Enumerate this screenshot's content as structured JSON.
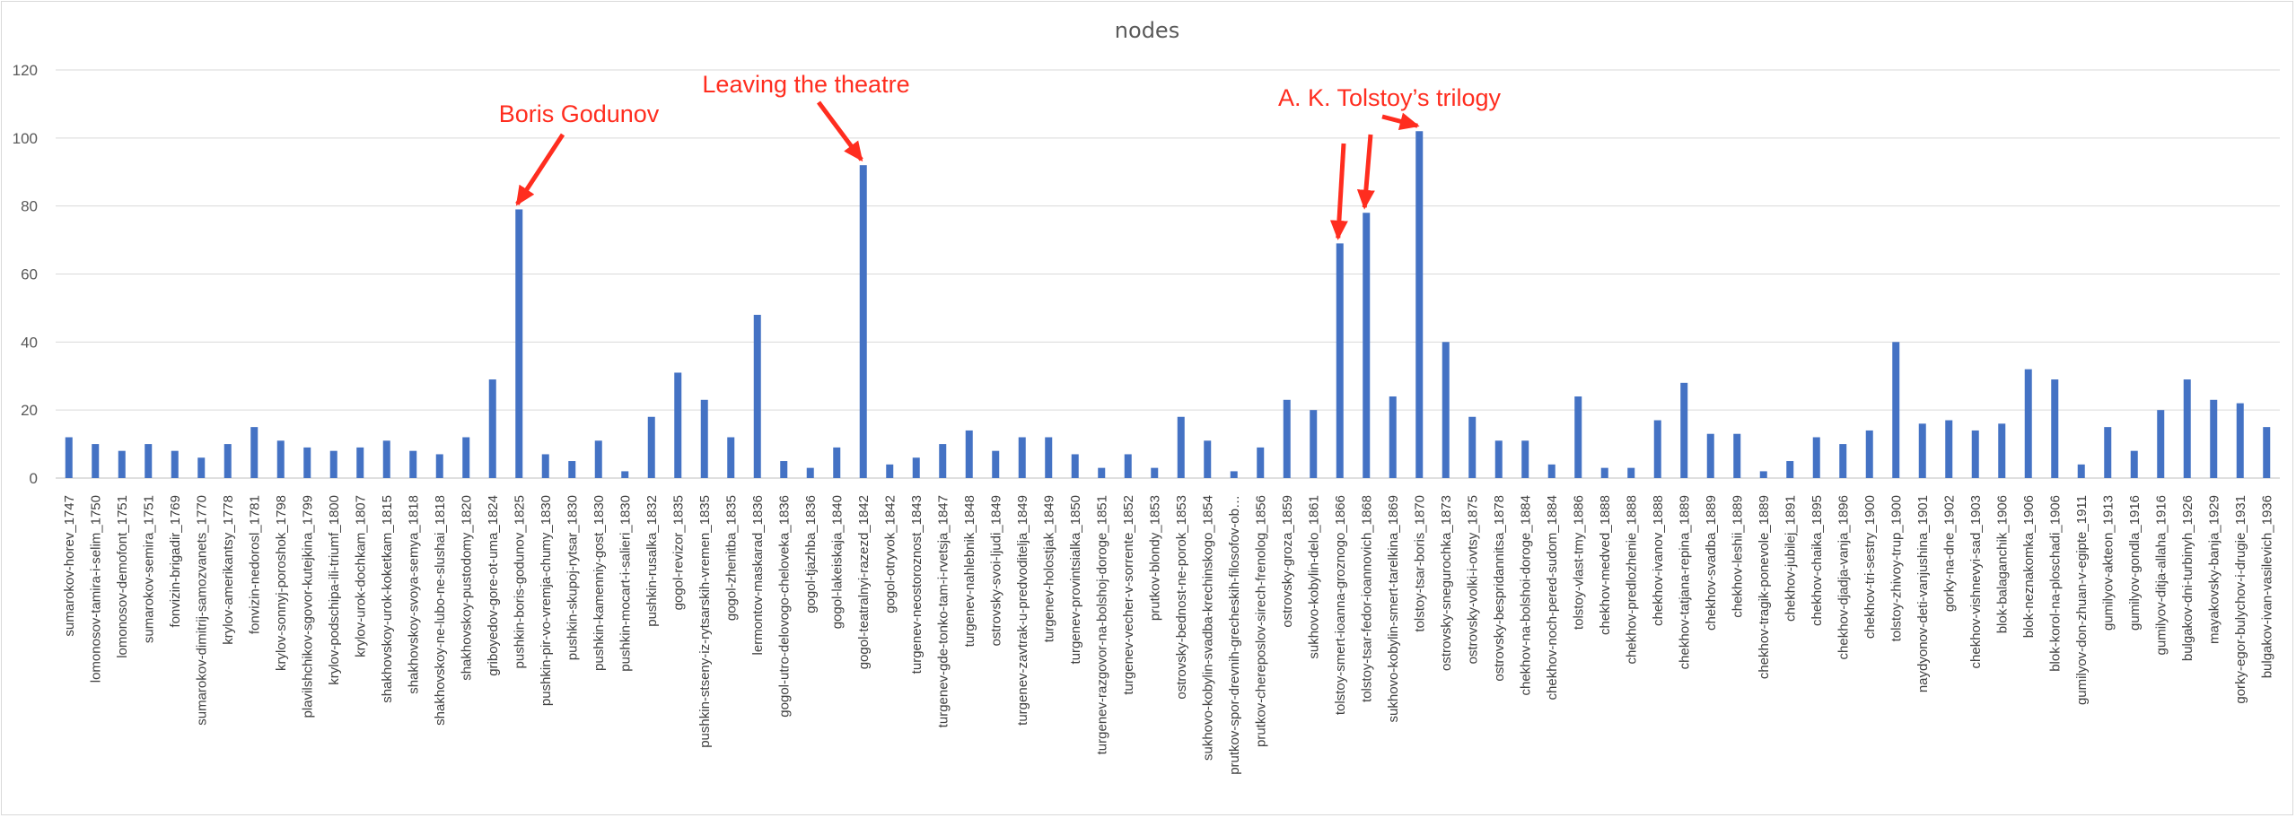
{
  "chart_data": {
    "type": "bar",
    "title": "nodes",
    "xlabel": "",
    "ylabel": "",
    "ylim": [
      0,
      120
    ],
    "yticks": [
      0,
      20,
      40,
      60,
      80,
      100,
      120
    ],
    "grid": true,
    "legend": "none",
    "colors": {
      "bar": "#4472c4",
      "annotation": "#ff2d1f",
      "grid": "#d9d9d9",
      "text": "#595959"
    },
    "categories": [
      "sumarokov-horev_1747",
      "lomonosov-tamira-i-selim_1750",
      "lomonosov-demofont_1751",
      "sumarokov-semira_1751",
      "fonvizin-brigadir_1769",
      "sumarokov-dimitrij-samozvanets_1770",
      "krylov-amerikantsy_1778",
      "fonvizin-nedorosl_1781",
      "krylov-sonnyj-poroshok_1798",
      "plavilshchikov-sgovor-kutejkina_1799",
      "krylov-podschipa-ili-triumf_1800",
      "krylov-urok-dochkam_1807",
      "shakhovskoy-urok-koketkam_1815",
      "shakhovskoy-svoya-semya_1818",
      "shakhovskoy-ne-lubo-ne-slushai_1818",
      "shakhovskoy-pustodomy_1820",
      "griboyedov-gore-ot-uma_1824",
      "pushkin-boris-godunov_1825",
      "pushkin-pir-vo-vremja-chumy_1830",
      "pushkin-skupoj-rytsar_1830",
      "pushkin-kamenniy-gost_1830",
      "pushkin-mocart-i-salieri_1830",
      "pushkin-rusalka_1832",
      "gogol-revizor_1835",
      "pushkin-stseny-iz-rytsarskih-vremen_1835",
      "gogol-zhenitba_1835",
      "lermontov-maskarad_1836",
      "gogol-utro-delovogo-cheloveka_1836",
      "gogol-tjazhba_1836",
      "gogol-lakeiskaja_1840",
      "gogol-teatralnyi-razezd_1842",
      "gogol-otryvok_1842",
      "turgenev-neostoroznost_1843",
      "turgenev-gde-tonko-tam-i-rvetsja_1847",
      "turgenev-nahlebnik_1848",
      "ostrovsky-svoi-ljudi_1849",
      "turgenev-zavtrak-u-predvoditelja_1849",
      "turgenev-holostjak_1849",
      "turgenev-provintsialka_1850",
      "turgenev-razgovor-na-bolshoj-doroge_1851",
      "turgenev-vecher-v-sorrente_1852",
      "prutkov-blondy_1853",
      "ostrovsky-bednost-ne-porok_1853",
      "sukhovo-kobylin-svadba-krechinskogo_1854",
      "prutkov-spor-drevnih-grecheskih-filosofov-ob…",
      "prutkov-chereposlov-sirech-frenolog_1856",
      "ostrovsky-groza_1859",
      "sukhovo-kobylin-delo_1861",
      "tolstoy-smert-ioanna-groznogo_1866",
      "tolstoy-tsar-fedor-ioannovich_1868",
      "sukhovo-kobylin-smert-tarelkina_1869",
      "tolstoy-tsar-boris_1870",
      "ostrovsky-snegurochka_1873",
      "ostrovsky-volki-i-ovtsy_1875",
      "ostrovsky-bespridannitsa_1878",
      "chekhov-na-bolshoi-doroge_1884",
      "chekhov-noch-pered-sudom_1884",
      "tolstoy-vlast-tmy_1886",
      "chekhov-medved_1888",
      "chekhov-predlozhenie_1888",
      "chekhov-ivanov_1888",
      "chekhov-tatjana-repina_1889",
      "chekhov-svadba_1889",
      "chekhov-leshii_1889",
      "chekhov-tragik-ponevole_1889",
      "chekhov-jubilej_1891",
      "chekhov-chaika_1895",
      "chekhov-djadja-vanja_1896",
      "chekhov-tri-sestry_1900",
      "tolstoy-zhivoy-trup_1900",
      "naydyonov-deti-vanjushina_1901",
      "gorky-na-dne_1902",
      "chekhov-vishnevyi-sad_1903",
      "blok-balaganchik_1906",
      "blok-neznakomka_1906",
      "blok-korol-na-ploschadi_1906",
      "gumilyov-don-zhuan-v-egipte_1911",
      "gumilyov-akteon_1913",
      "gumilyov-gondla_1916",
      "gumilyov-ditja-allaha_1916",
      "bulgakov-dni-turbinyh_1926",
      "mayakovsky-banja_1929",
      "gorky-egor-bulychov-i-drugie_1931",
      "bulgakov-ivan-vasilevich_1936"
    ],
    "series": [
      {
        "values": [
          12,
          10,
          8,
          10,
          8,
          6,
          10,
          15,
          11,
          9,
          8,
          9,
          11,
          8,
          7,
          12,
          29,
          79,
          7,
          5,
          11,
          2,
          18,
          31,
          23,
          12,
          48,
          5,
          3,
          9,
          92,
          4,
          6,
          10,
          14,
          8,
          12,
          12,
          7,
          3,
          7,
          3,
          18,
          11,
          2,
          9,
          23,
          20,
          69,
          78,
          24,
          102,
          40,
          18,
          11,
          11,
          4,
          24,
          3,
          3,
          17,
          28,
          13,
          13,
          2,
          5,
          12,
          10,
          14,
          40,
          16,
          17,
          14,
          16,
          32,
          29,
          4,
          15,
          8,
          20,
          29,
          23,
          22,
          15
        ]
      }
    ],
    "annotations": [
      {
        "text": "Boris Godunov",
        "targets": [
          "pushkin-boris-godunov_1825"
        ]
      },
      {
        "text": "Leaving the theatre",
        "targets": [
          "gogol-teatralnyi-razezd_1842"
        ]
      },
      {
        "text": "A. K. Tolstoy’s trilogy",
        "targets": [
          "tolstoy-smert-ioanna-groznogo_1866",
          "tolstoy-tsar-fedor-ioannovich_1868",
          "tolstoy-tsar-boris_1870"
        ]
      }
    ]
  }
}
